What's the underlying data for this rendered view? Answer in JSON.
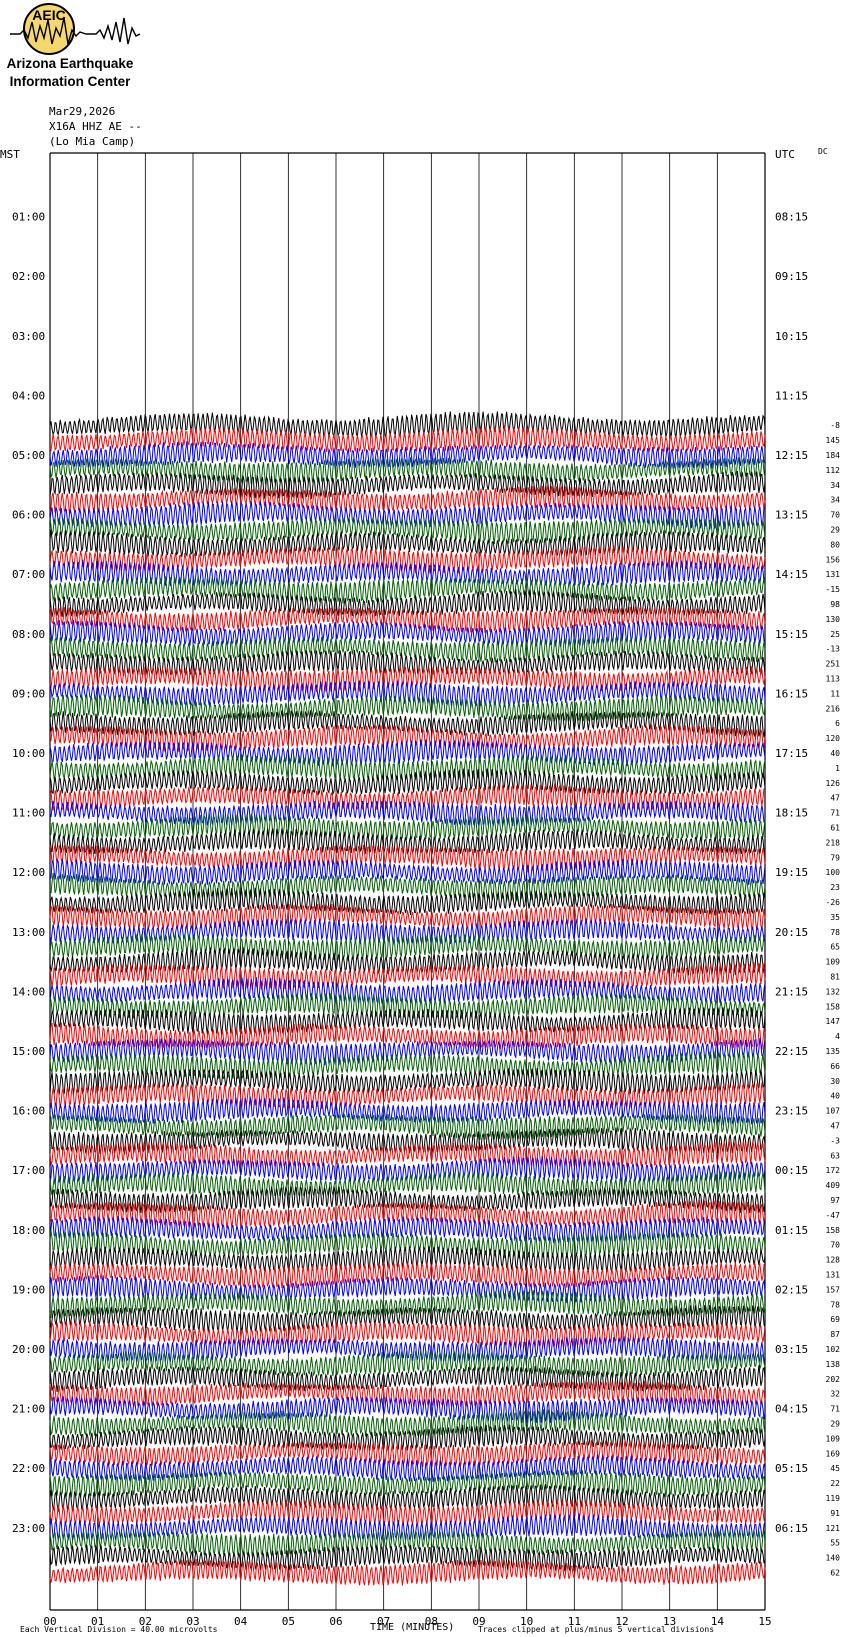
{
  "logo": {
    "initials": "AEIC",
    "line1": "Arizona Earthquake",
    "line2": "Information Center"
  },
  "header": {
    "date": "Mar29,2026",
    "station": "X16A HHZ AE --",
    "site": "(Lo Mia Camp)"
  },
  "axes": {
    "left_label": "MST",
    "right_label": "UTC",
    "dc_label": "DC",
    "xlabel": "TIME (MINUTES)",
    "scale_note": "Each Vertical Division =   40.00 microvolts",
    "clip_note": "Traces clipped at plus/minus 5 vertical divisions"
  },
  "chart_data": {
    "type": "line",
    "title": "",
    "x_ticks": [
      "00",
      "01",
      "02",
      "03",
      "04",
      "05",
      "06",
      "07",
      "08",
      "09",
      "10",
      "11",
      "12",
      "13",
      "14",
      "15"
    ],
    "xlim": [
      0,
      15
    ],
    "hour_labels_mst": [
      "01:00",
      "02:00",
      "03:00",
      "04:00",
      "05:00",
      "06:00",
      "07:00",
      "08:00",
      "09:00",
      "10:00",
      "11:00",
      "12:00",
      "13:00",
      "14:00",
      "15:00",
      "16:00",
      "17:00",
      "18:00",
      "19:00",
      "20:00",
      "21:00",
      "22:00",
      "23:00"
    ],
    "hour_labels_utc": [
      "08:15",
      "09:15",
      "10:15",
      "11:15",
      "12:15",
      "13:15",
      "14:15",
      "15:15",
      "16:15",
      "17:15",
      "18:15",
      "19:15",
      "20:15",
      "21:15",
      "22:15",
      "23:15",
      "00:15",
      "01:15",
      "02:15",
      "03:15",
      "04:15",
      "05:15",
      "06:15"
    ],
    "trace_colors": [
      "#0000ff",
      "#006400",
      "#000000",
      "#ff0000"
    ],
    "first_trace_color_index": 0,
    "data_start_trace_index": 18,
    "dc_offsets": [
      -8,
      145,
      184,
      112,
      34,
      34,
      70,
      29,
      80,
      156,
      131,
      -15,
      98,
      130,
      25,
      -13,
      251,
      113,
      11,
      216,
      6,
      120,
      40,
      1,
      126,
      47,
      71,
      61,
      218,
      79,
      100,
      23,
      -26,
      35,
      78,
      65,
      109,
      81,
      132,
      158,
      147,
      4,
      135,
      66,
      30,
      40,
      107,
      47,
      -3,
      63,
      172,
      409,
      97,
      -47,
      158,
      70,
      128,
      131,
      157,
      78,
      69,
      87,
      102,
      138,
      202,
      32,
      71,
      29,
      109,
      169,
      45,
      22,
      119,
      91,
      121,
      55,
      140,
      62
    ]
  }
}
